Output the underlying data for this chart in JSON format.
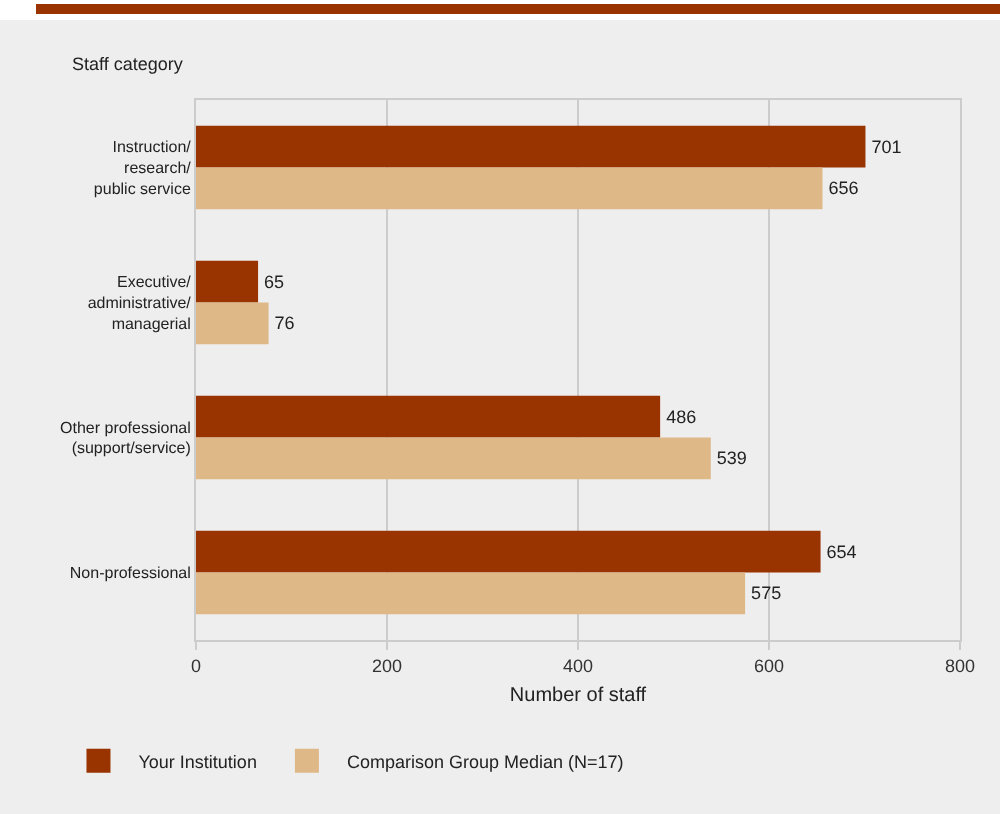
{
  "chart_data": {
    "type": "bar",
    "orientation": "horizontal",
    "ylabel": "Staff category",
    "xlabel": "Number of staff",
    "categories": [
      "Instruction/\nresearch/\npublic service",
      "Executive/\nadministrative/\nmanagerial",
      "Other professional\n(support/service)",
      "Non-professional"
    ],
    "series": [
      {
        "name": "Your Institution",
        "color": "#993300",
        "values": [
          701,
          65,
          486,
          654
        ]
      },
      {
        "name": "Comparison Group Median (N=17)",
        "color": "#deb887",
        "values": [
          656,
          76,
          539,
          575
        ]
      }
    ],
    "xlim": [
      0,
      800
    ],
    "xticks": [
      0,
      200,
      400,
      600,
      800
    ],
    "grid": "x",
    "legend": "bottom",
    "data_labels": true
  }
}
